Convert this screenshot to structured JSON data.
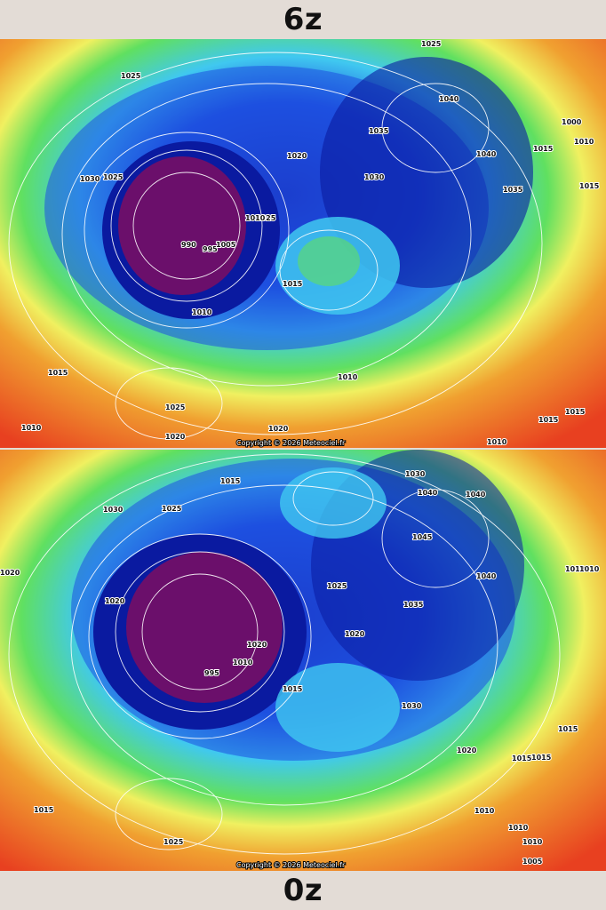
{
  "panels": [
    {
      "label": "6z",
      "copyright": "Copyright © 2026 Meteociel.fr",
      "isobar_labels": [
        "1025",
        "1040",
        "1000",
        "1010",
        "1025",
        "1035",
        "1040",
        "1015",
        "1015",
        "1030",
        "1025",
        "1020",
        "1030",
        "1035",
        "1025",
        "990",
        "995",
        "1005",
        "1010",
        "1015",
        "1010",
        "1015",
        "1025",
        "1010",
        "1020",
        "1020",
        "1010",
        "1015",
        "1015",
        "1010"
      ]
    },
    {
      "label": "0z",
      "copyright": "Copyright © 2026 Meteociel.fr",
      "isobar_labels": [
        "1015",
        "1030",
        "1040",
        "1040",
        "1030",
        "1025",
        "1045",
        "1020",
        "1010",
        "1010",
        "1040",
        "1025",
        "1020",
        "1035",
        "1020",
        "1020",
        "1010",
        "995",
        "1015",
        "1030",
        "1020",
        "1015",
        "1015",
        "1015",
        "1010",
        "1010",
        "1015",
        "1025",
        "1010",
        "1005"
      ]
    }
  ],
  "colors": {
    "low_core": "#6b0f6b",
    "deep_blue": "#0a1aa0",
    "blue": "#1e50e0",
    "cyan": "#40c8f0",
    "green": "#60e060",
    "yellow": "#f0f060",
    "orange": "#f0a030",
    "red": "#e84020",
    "background": "#e3dcd6"
  }
}
